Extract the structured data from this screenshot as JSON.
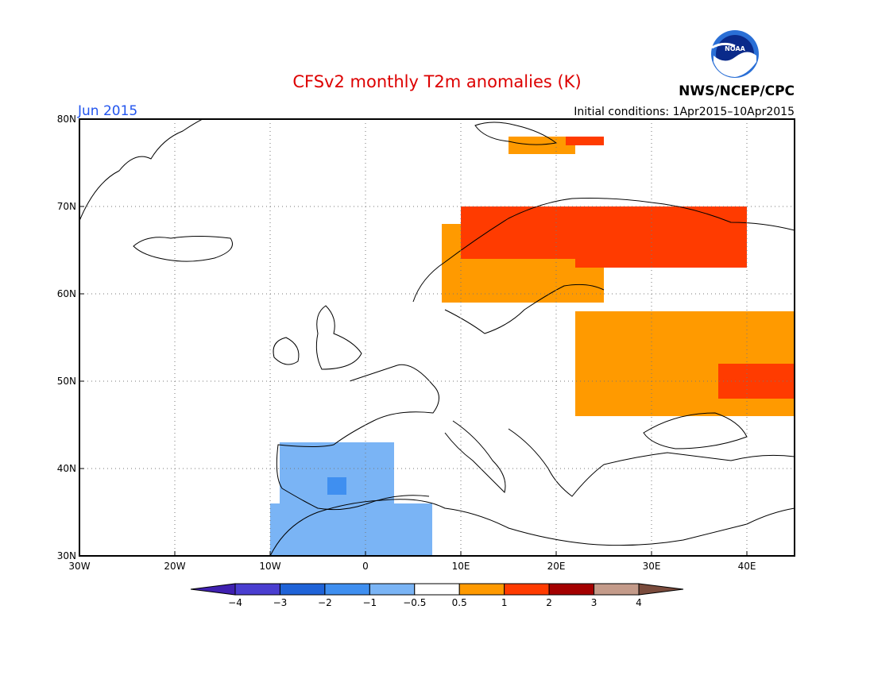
{
  "header": {
    "title": "CFSv2 monthly T2m anomalies (K)",
    "month": "Jun 2015",
    "initial_conditions": "Initial conditions: 1Apr2015–10Apr2015",
    "agency": "NWS/NCEP/CPC",
    "logo_text": "NOAA"
  },
  "colors": {
    "title": "#dd0000",
    "month": "#2255ee",
    "bins": [
      "#3f20b0",
      "#4a3ed0",
      "#1f63d8",
      "#3f8ff0",
      "#7ab4f5",
      "#ffffff",
      "#ff9a00",
      "#ff3b00",
      "#a40000",
      "#c49b8a",
      "#7a4b3c"
    ]
  },
  "map": {
    "lon_range": [
      -30,
      45
    ],
    "lat_range": [
      30,
      80
    ],
    "lon_ticks": [
      "30W",
      "20W",
      "10W",
      "0",
      "10E",
      "20E",
      "30E",
      "40E"
    ],
    "lat_ticks": [
      "30N",
      "40N",
      "50N",
      "60N",
      "70N",
      "80N"
    ],
    "grid": true,
    "anomalies": [
      {
        "level": "+0.5..1",
        "lon": [
          22,
          45
        ],
        "lat": [
          46,
          58
        ]
      },
      {
        "level": "+0.5..1",
        "lon": [
          8,
          25
        ],
        "lat": [
          59,
          68
        ]
      },
      {
        "level": "+1..2",
        "lon": [
          22,
          40
        ],
        "lat": [
          63,
          70
        ]
      },
      {
        "level": "+1..2",
        "lon": [
          10,
          22
        ],
        "lat": [
          64,
          70
        ]
      },
      {
        "level": "+1..2",
        "lon": [
          37,
          45
        ],
        "lat": [
          48,
          52
        ]
      },
      {
        "level": "+0.5..1",
        "lon": [
          15,
          22
        ],
        "lat": [
          76,
          78
        ]
      },
      {
        "level": "+1..2",
        "lon": [
          21,
          25
        ],
        "lat": [
          77,
          78
        ]
      },
      {
        "level": "-0.5..-1",
        "lon": [
          -9,
          3
        ],
        "lat": [
          36,
          43
        ]
      },
      {
        "level": "-1..-2",
        "lon": [
          -4,
          -2
        ],
        "lat": [
          37,
          39
        ]
      },
      {
        "level": "-0.5..-1",
        "lon": [
          -10,
          7
        ],
        "lat": [
          30,
          36
        ]
      }
    ]
  },
  "colorbar": {
    "labels": [
      "−4",
      "−3",
      "−2",
      "−1",
      "−0.5",
      "0.5",
      "1",
      "2",
      "3",
      "4"
    ]
  }
}
